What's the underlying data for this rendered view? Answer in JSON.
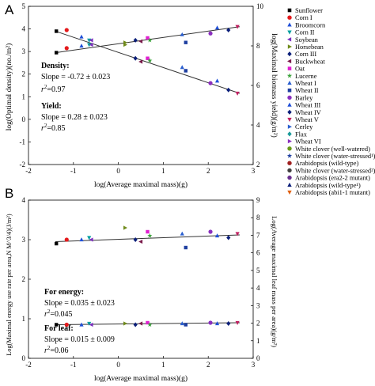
{
  "chart_data": [
    {
      "panel": "A",
      "type": "scatter",
      "xlabel": "log(Average maximal mass)(g)",
      "ylabel_left": "log(Optimal density)(no./m²)",
      "ylabel_right": "log(Maximal biomass yield)(g/m²)",
      "xlim": [
        -2,
        3
      ],
      "ylim_left": [
        -2,
        5
      ],
      "ylim_right": [
        2,
        10
      ],
      "xticks": [
        "-2",
        "-1",
        "0",
        "1",
        "2",
        "3"
      ],
      "yticks_left": [
        "-2",
        "-1",
        "0",
        "1",
        "2",
        "3",
        "4",
        "5"
      ],
      "yticks_right": [
        "2",
        "4",
        "6",
        "8",
        "10"
      ],
      "density": {
        "label": "Density",
        "slope_text": "Slope = -0.72 ± 0.023",
        "r2_text": "=0.97",
        "fit": [
          [
            -1.4,
            3.9
          ],
          [
            2.7,
            1.15
          ]
        ],
        "x": [
          -1.38,
          -1.15,
          -0.82,
          -0.65,
          -0.6,
          0.15,
          0.38,
          0.5,
          0.65,
          0.7,
          1.42,
          1.5,
          2.05,
          2.2,
          2.45,
          2.65
        ],
        "y": [
          3.9,
          3.95,
          3.65,
          3.5,
          3.5,
          3.3,
          2.7,
          2.55,
          2.7,
          2.6,
          2.3,
          2.15,
          1.6,
          1.7,
          1.3,
          1.15
        ]
      },
      "yield": {
        "label": "Yield",
        "slope_text": "Slope = 0.28 ± 0.023",
        "r2_text": "=0.85",
        "fit": [
          [
            -1.4,
            2.95
          ],
          [
            2.7,
            4.1
          ]
        ],
        "x": [
          -1.38,
          -1.15,
          -0.82,
          -0.65,
          -0.6,
          0.15,
          0.38,
          0.5,
          0.65,
          0.7,
          1.42,
          1.5,
          2.05,
          2.2,
          2.45,
          2.65
        ],
        "y": [
          2.95,
          3.15,
          3.25,
          3.3,
          3.3,
          3.4,
          3.5,
          3.45,
          3.6,
          3.5,
          3.75,
          3.4,
          3.8,
          4.05,
          3.95,
          4.1
        ]
      }
    },
    {
      "panel": "B",
      "type": "scatter",
      "xlabel": "log(Average maximal mass)(g)",
      "ylabel_left": "Log(Maximal energy use rate per area,N M^3/4)(J/m²)",
      "ylabel_right": "Log(Average maximal leaf mass per area)(g/m²)",
      "xlim": [
        -2,
        3
      ],
      "ylim_left": [
        0,
        4
      ],
      "ylim_right": [
        0,
        9
      ],
      "xticks": [
        "-2",
        "-1",
        "0",
        "1",
        "2",
        "3"
      ],
      "yticks_left": [
        "0",
        "1",
        "2",
        "3",
        "4"
      ],
      "yticks_right": [
        "0",
        "1",
        "2",
        "3",
        "4",
        "5",
        "6",
        "7",
        "8",
        "9"
      ],
      "energy": {
        "label": "For energy",
        "slope_text": "Slope = 0.035 ± 0.023",
        "r2_text": "=0.045",
        "fit": [
          [
            -1.4,
            2.95
          ],
          [
            2.7,
            3.12
          ]
        ],
        "x": [
          -1.38,
          -1.15,
          -0.82,
          -0.65,
          -0.6,
          0.15,
          0.38,
          0.5,
          0.65,
          0.7,
          1.42,
          1.5,
          2.05,
          2.2,
          2.45,
          2.65
        ],
        "y": [
          2.9,
          3.0,
          3.0,
          3.05,
          3.0,
          3.3,
          3.0,
          2.95,
          3.2,
          3.1,
          3.15,
          2.8,
          3.2,
          3.1,
          3.05,
          3.15
        ]
      },
      "leaf": {
        "label": "For leaf",
        "slope_text": "Slope = 0.015 ± 0.009",
        "r2_text": "=0.06",
        "fit": [
          [
            -1.4,
            0.85
          ],
          [
            2.7,
            0.9
          ]
        ],
        "x": [
          -1.38,
          -1.15,
          -0.82,
          -0.65,
          -0.6,
          0.15,
          0.38,
          0.5,
          0.65,
          0.7,
          1.42,
          1.5,
          2.05,
          2.2,
          2.45,
          2.65
        ],
        "y": [
          0.85,
          0.85,
          0.85,
          0.88,
          0.85,
          0.88,
          0.85,
          0.88,
          0.9,
          0.85,
          0.88,
          0.85,
          0.9,
          0.88,
          0.88,
          0.9
        ]
      }
    }
  ],
  "legend": [
    {
      "label": "Sunflower",
      "marker": "square",
      "color": "#000000"
    },
    {
      "label": "Corn I",
      "marker": "circle",
      "color": "#e41a1c"
    },
    {
      "label": "Broomcorn",
      "marker": "triangle-up",
      "color": "#1f4fd8"
    },
    {
      "label": "Corn II",
      "marker": "triangle-down",
      "color": "#00a0a0"
    },
    {
      "label": "Soybean",
      "marker": "triangle-left",
      "color": "#7b2fbe"
    },
    {
      "label": "Horsebean",
      "marker": "triangle-right",
      "color": "#6f8a1a"
    },
    {
      "label": "Corn III",
      "marker": "diamond",
      "color": "#0b1f7a"
    },
    {
      "label": "Buckwheat",
      "marker": "triangle-left",
      "color": "#7a1a4a"
    },
    {
      "label": "Oat",
      "marker": "square",
      "color": "#e020d0"
    },
    {
      "label": "Lucerne",
      "marker": "star",
      "color": "#3aa23a"
    },
    {
      "label": "Wheat I",
      "marker": "triangle-up",
      "color": "#2a5fd0"
    },
    {
      "label": "Wheat II",
      "marker": "square",
      "color": "#1f3fa0"
    },
    {
      "label": "Barley",
      "marker": "circle",
      "color": "#8a2fbe"
    },
    {
      "label": "Wheat III",
      "marker": "triangle-up",
      "color": "#1f4fd8"
    },
    {
      "label": "Wheat IV",
      "marker": "diamond",
      "color": "#0b1f7a"
    },
    {
      "label": "Wheat V",
      "marker": "triangle-down",
      "color": "#c02060"
    },
    {
      "label": "Cerley",
      "marker": "triangle-right",
      "color": "#2a5fd0"
    },
    {
      "label": "Flax",
      "marker": "diamond",
      "color": "#1a9a9a"
    },
    {
      "label": "Wheat VI",
      "marker": "triangle-right",
      "color": "#8a2fbe"
    },
    {
      "label": "White clover (well-watered)",
      "marker": "circle",
      "color": "#6a9a1a"
    },
    {
      "label": "White clover (water-stressed¹)",
      "marker": "star",
      "color": "#1f3fa0"
    },
    {
      "label": "Arabidopsis (wild-type)",
      "marker": "circle",
      "color": "#a02020"
    },
    {
      "label": "White clover (water-stressed²)",
      "marker": "circle",
      "color": "#404040"
    },
    {
      "label": "Arabidopsis (era2-2 mutant)",
      "marker": "circle",
      "color": "#6a2f8e"
    },
    {
      "label": "Arabidopsis (wild-type¹)",
      "marker": "triangle-up",
      "color": "#0b1f7a"
    },
    {
      "label": "Arabidopsis (abi1-1 mutant)",
      "marker": "triangle-down",
      "color": "#e06010"
    }
  ]
}
